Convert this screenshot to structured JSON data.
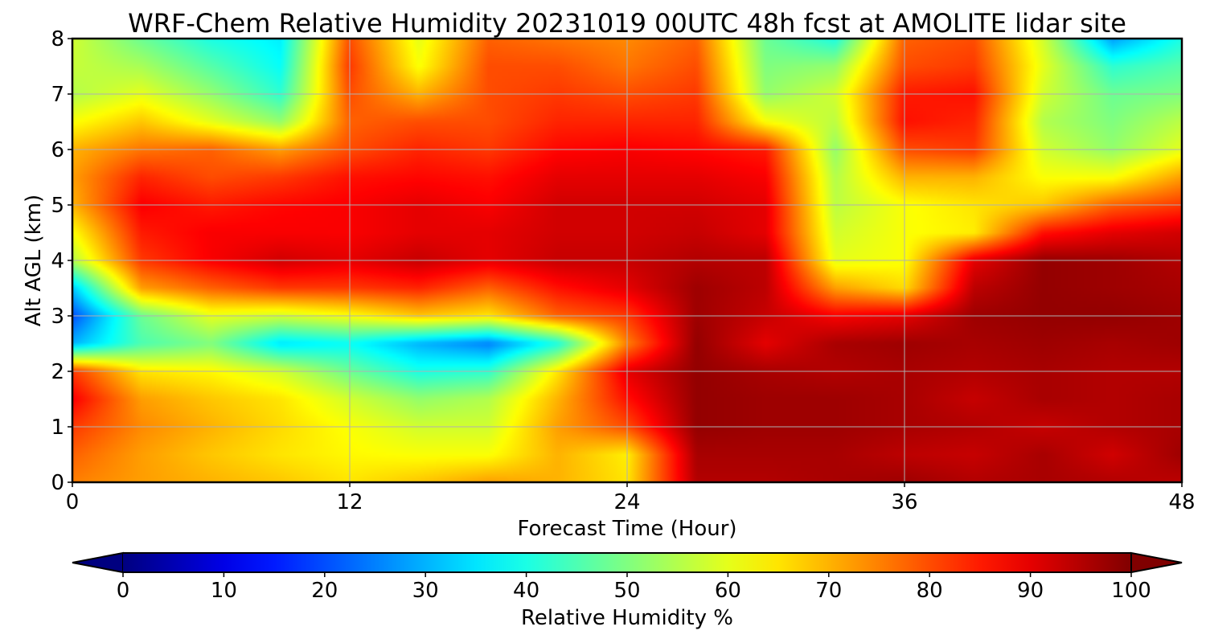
{
  "chart_data": {
    "type": "heatmap",
    "title": "WRF-Chem Relative Humidity 20231019 00UTC 48h fcst at AMOLITE lidar site",
    "xlabel": "Forecast Time (Hour)",
    "ylabel": "Alt AGL (km)",
    "xlim": [
      0,
      48
    ],
    "ylim": [
      0,
      8
    ],
    "xticks": [
      "0",
      "12",
      "24",
      "36",
      "48"
    ],
    "yticks": [
      "0",
      "1",
      "2",
      "3",
      "4",
      "5",
      "6",
      "7",
      "8"
    ],
    "grid": true,
    "colormap": "jet",
    "colorbar": {
      "label": "Relative Humidity %",
      "range": [
        0,
        100
      ],
      "ticks": [
        "0",
        "10",
        "20",
        "30",
        "40",
        "50",
        "60",
        "70",
        "80",
        "90",
        "100"
      ],
      "extend": "both",
      "orientation": "horizontal"
    },
    "x": [
      0,
      3,
      6,
      9,
      12,
      15,
      18,
      21,
      24,
      27,
      30,
      33,
      36,
      39,
      42,
      45,
      48
    ],
    "y": [
      0,
      0.5,
      1,
      1.5,
      2,
      2.5,
      3,
      3.5,
      4,
      4.5,
      5,
      5.5,
      6,
      6.5,
      7,
      7.5,
      8
    ],
    "z": [
      [
        75,
        72,
        70,
        68,
        65,
        68,
        72,
        70,
        65,
        95,
        95,
        96,
        97,
        95,
        96,
        95,
        94
      ],
      [
        78,
        72,
        68,
        65,
        63,
        62,
        62,
        70,
        64,
        96,
        96,
        96,
        94,
        93,
        96,
        92,
        97
      ],
      [
        82,
        74,
        70,
        66,
        62,
        58,
        58,
        72,
        80,
        98,
        97,
        97,
        96,
        95,
        93,
        95,
        96
      ],
      [
        88,
        72,
        68,
        65,
        58,
        52,
        55,
        70,
        86,
        98,
        97,
        97,
        96,
        93,
        96,
        95,
        96
      ],
      [
        82,
        65,
        63,
        58,
        48,
        40,
        42,
        65,
        90,
        98,
        96,
        95,
        96,
        95,
        96,
        95,
        95
      ],
      [
        30,
        45,
        50,
        35,
        38,
        30,
        25,
        40,
        75,
        98,
        90,
        96,
        97,
        96,
        97,
        96,
        97
      ],
      [
        20,
        48,
        60,
        58,
        62,
        68,
        65,
        78,
        82,
        97,
        93,
        88,
        90,
        97,
        98,
        98,
        97
      ],
      [
        32,
        72,
        78,
        82,
        82,
        84,
        78,
        86,
        90,
        97,
        94,
        72,
        66,
        94,
        98,
        97,
        96
      ],
      [
        55,
        82,
        88,
        92,
        90,
        93,
        90,
        93,
        93,
        95,
        94,
        60,
        62,
        90,
        98,
        97,
        95
      ],
      [
        62,
        85,
        88,
        88,
        88,
        90,
        90,
        92,
        92,
        93,
        90,
        58,
        62,
        64,
        86,
        90,
        92
      ],
      [
        70,
        88,
        85,
        87,
        88,
        90,
        88,
        92,
        92,
        92,
        90,
        56,
        62,
        65,
        68,
        78,
        82
      ],
      [
        72,
        84,
        80,
        82,
        86,
        87,
        86,
        90,
        90,
        90,
        88,
        55,
        70,
        70,
        62,
        62,
        72
      ],
      [
        70,
        76,
        78,
        72,
        80,
        84,
        82,
        87,
        88,
        87,
        85,
        52,
        80,
        82,
        58,
        52,
        60
      ],
      [
        62,
        68,
        60,
        52,
        78,
        80,
        80,
        84,
        84,
        84,
        62,
        56,
        86,
        84,
        55,
        50,
        56
      ],
      [
        55,
        60,
        52,
        42,
        80,
        70,
        80,
        82,
        80,
        82,
        52,
        58,
        85,
        86,
        58,
        48,
        50
      ],
      [
        57,
        54,
        46,
        38,
        82,
        62,
        80,
        80,
        76,
        80,
        50,
        52,
        80,
        82,
        60,
        42,
        46
      ],
      [
        58,
        48,
        40,
        36,
        80,
        60,
        78,
        76,
        74,
        78,
        48,
        40,
        78,
        80,
        58,
        28,
        40
      ]
    ]
  }
}
